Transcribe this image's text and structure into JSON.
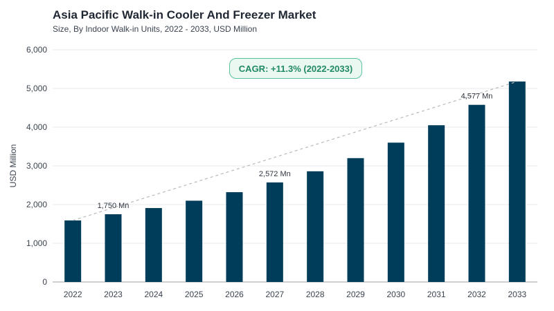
{
  "header": {
    "title": "Asia Pacific Walk-in Cooler And Freezer Market",
    "subtitle": "Size, By Indoor Walk-in Units, 2022 - 2033, USD Million"
  },
  "badge": {
    "cagr_label": "CAGR: +11.3% (2022-2033)"
  },
  "colors": {
    "bar": "#003d5b",
    "trend": "#b8b8b8",
    "badge_border": "#57c39a",
    "badge_text": "#1f8a62"
  },
  "chart_data": {
    "type": "bar",
    "title": "Asia Pacific Walk-in Cooler And Freezer Market",
    "subtitle": "Size, By Indoor Walk-in Units, 2022 - 2033, USD Million",
    "xlabel": "",
    "ylabel": "USD Million",
    "ylim": [
      0,
      6000
    ],
    "yticks": [
      0,
      1000,
      2000,
      3000,
      4000,
      5000,
      6000
    ],
    "ytick_labels": [
      "0",
      "1,000",
      "2,000",
      "3,000",
      "4,000",
      "5,000",
      "6,000"
    ],
    "grid": true,
    "legend": "none",
    "categories": [
      "2022",
      "2023",
      "2024",
      "2025",
      "2026",
      "2027",
      "2028",
      "2029",
      "2030",
      "2031",
      "2032",
      "2033"
    ],
    "values": [
      1590,
      1750,
      1910,
      2100,
      2320,
      2572,
      2860,
      3200,
      3600,
      4050,
      4577,
      5180
    ],
    "data_labels": [
      {
        "category": "2023",
        "text": "1,750 Mn"
      },
      {
        "category": "2027",
        "text": "2,572 Mn"
      },
      {
        "category": "2032",
        "text": "4,577 Mn"
      }
    ],
    "trendline": {
      "style": "dashed",
      "from": "2022",
      "to": "2033"
    }
  }
}
